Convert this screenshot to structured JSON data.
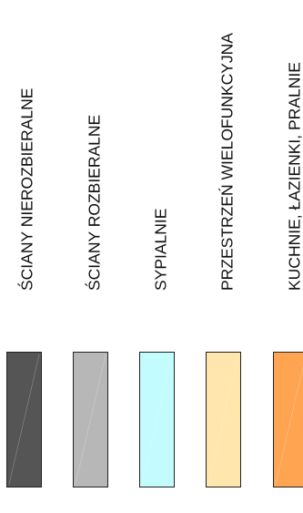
{
  "legend": {
    "items": [
      {
        "label": "ŚCIANY NIEROZBIERALNE",
        "color": "#555555"
      },
      {
        "label": "ŚCIANY ROZBIERALNE",
        "color": "#b7b7b7"
      },
      {
        "label": "SYPIALNIE",
        "color": "#c2fcfd"
      },
      {
        "label": "PRZESTRZEŃ WIELOFUNKCYJNA",
        "color": "#ffe6ac"
      },
      {
        "label": "KUCHNIE, ŁAZIENKI, PRALNIE",
        "color": "#ffa552"
      }
    ]
  }
}
